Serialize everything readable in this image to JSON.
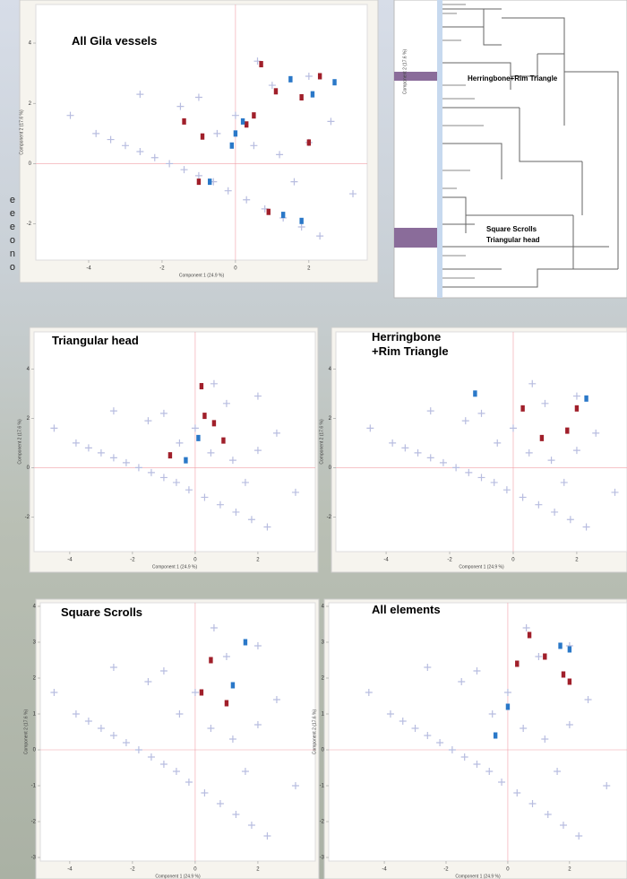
{
  "chart_data": [
    {
      "type": "scatter",
      "title": "All Gila vessels",
      "x_label": "Component 1 (24.9 %)",
      "y_label": "Component 2 (17.6 %)",
      "xlim": [
        -5.44,
        3.59
      ],
      "ylim": [
        -3.2,
        5.28
      ],
      "xticks": [
        -4,
        -2,
        0,
        2
      ],
      "yticks": [
        -2,
        0,
        2,
        4
      ],
      "series": [
        {
          "color": "#b8bde0",
          "marker": "plus",
          "x": [
            -4.5,
            -3.8,
            -3.4,
            -3.0,
            -2.6,
            -2.2,
            -1.8,
            -1.4,
            -1.0,
            -0.6,
            -0.2,
            0.3,
            0.8,
            1.3,
            1.8,
            2.3,
            -2.6,
            -1.5,
            -0.5,
            0.5,
            1.2,
            2.0,
            2.6,
            -1.0,
            0.0,
            1.0,
            2.0,
            0.6,
            1.6,
            3.2
          ],
          "values": [
            1.6,
            1.0,
            0.8,
            0.6,
            0.4,
            0.2,
            0.0,
            -0.2,
            -0.4,
            -0.6,
            -0.9,
            -1.2,
            -1.5,
            -1.8,
            -2.1,
            -2.4,
            2.3,
            1.9,
            1.0,
            0.6,
            0.3,
            0.7,
            1.4,
            2.2,
            1.6,
            2.6,
            2.9,
            3.4,
            -0.6,
            -1.0
          ]
        },
        {
          "color": "#a01f2a",
          "marker": "rect",
          "x": [
            0.7,
            1.1,
            -0.9,
            0.3,
            1.8,
            -1.4,
            0.5,
            2.3,
            -1.0,
            2.0,
            0.9
          ],
          "values": [
            3.3,
            2.4,
            0.9,
            1.3,
            2.2,
            1.4,
            1.6,
            2.9,
            -0.6,
            0.7,
            -1.6
          ]
        },
        {
          "color": "#2a78c8",
          "marker": "rect",
          "x": [
            1.5,
            2.1,
            0.0,
            0.2,
            -0.7,
            1.3,
            1.8,
            -0.1,
            2.7
          ],
          "values": [
            2.8,
            2.3,
            1.0,
            1.4,
            -0.6,
            -1.7,
            -1.9,
            0.6,
            2.7
          ]
        }
      ]
    },
    {
      "type": "scatter",
      "title": "Triangular head",
      "x_label": "Component 1 (24.9 %)",
      "y_label": "Component 2 (17.6 %)",
      "xlim": [
        -5.14,
        3.83
      ],
      "ylim": [
        -3.4,
        5.5
      ],
      "xticks": [
        -4,
        -2,
        0,
        2
      ],
      "yticks": [
        -2,
        0,
        2,
        4
      ],
      "series": [
        {
          "color": "#b8bde0",
          "marker": "plus",
          "x": [
            -4.5,
            -3.8,
            -3.4,
            -3.0,
            -2.6,
            -2.2,
            -1.8,
            -1.4,
            -1.0,
            -0.6,
            -0.2,
            0.3,
            0.8,
            1.3,
            1.8,
            2.3,
            -2.6,
            -1.5,
            -0.5,
            0.5,
            1.2,
            2.0,
            2.6,
            -1.0,
            0.0,
            1.0,
            2.0,
            0.6,
            1.6,
            3.2
          ],
          "values": [
            1.6,
            1.0,
            0.8,
            0.6,
            0.4,
            0.2,
            0.0,
            -0.2,
            -0.4,
            -0.6,
            -0.9,
            -1.2,
            -1.5,
            -1.8,
            -2.1,
            -2.4,
            2.3,
            1.9,
            1.0,
            0.6,
            0.3,
            0.7,
            1.4,
            2.2,
            1.6,
            2.6,
            2.9,
            3.4,
            -0.6,
            -1.0
          ]
        },
        {
          "color": "#a01f2a",
          "marker": "rect",
          "x": [
            0.2,
            -0.8,
            0.6,
            0.9,
            0.3
          ],
          "values": [
            3.3,
            0.5,
            1.8,
            1.1,
            2.1
          ]
        },
        {
          "color": "#2a78c8",
          "marker": "rect",
          "x": [
            0.1,
            -0.3
          ],
          "values": [
            1.2,
            0.3
          ]
        }
      ]
    },
    {
      "type": "scatter",
      "title": "Herringbone\n+Rim Triangle",
      "x_label": "Component 1 (24.9 %)",
      "y_label": "Component 2 (17.6 %)",
      "xlim": [
        -5.58,
        3.58
      ],
      "ylim": [
        -3.4,
        5.5
      ],
      "xticks": [
        -4,
        -2,
        0,
        2
      ],
      "yticks": [
        -2,
        0,
        2,
        4
      ],
      "series": [
        {
          "color": "#b8bde0",
          "marker": "plus",
          "x": [
            -4.5,
            -3.8,
            -3.4,
            -3.0,
            -2.6,
            -2.2,
            -1.8,
            -1.4,
            -1.0,
            -0.6,
            -0.2,
            0.3,
            0.8,
            1.3,
            1.8,
            2.3,
            -2.6,
            -1.5,
            -0.5,
            0.5,
            1.2,
            2.0,
            2.6,
            -1.0,
            0.0,
            1.0,
            2.0,
            0.6,
            1.6,
            3.2
          ],
          "values": [
            1.6,
            1.0,
            0.8,
            0.6,
            0.4,
            0.2,
            0.0,
            -0.2,
            -0.4,
            -0.6,
            -0.9,
            -1.2,
            -1.5,
            -1.8,
            -2.1,
            -2.4,
            2.3,
            1.9,
            1.0,
            0.6,
            0.3,
            0.7,
            1.4,
            2.2,
            1.6,
            2.6,
            2.9,
            3.4,
            -0.6,
            -1.0
          ]
        },
        {
          "color": "#a01f2a",
          "marker": "rect",
          "x": [
            0.3,
            0.9,
            1.7,
            2.0
          ],
          "values": [
            2.4,
            1.2,
            1.5,
            2.4
          ]
        },
        {
          "color": "#2a78c8",
          "marker": "rect",
          "x": [
            -1.2,
            2.3
          ],
          "values": [
            3.0,
            2.8
          ]
        }
      ]
    },
    {
      "type": "scatter",
      "title": "Square Scrolls",
      "x_label": "Component 1 (24.9 %)",
      "y_label": "Component 2 (17.6 %)",
      "xlim": [
        -4.94,
        3.83
      ],
      "ylim": [
        -3.1,
        4.1
      ],
      "xticks": [
        -4,
        -2,
        0,
        2
      ],
      "yticks": [
        -3,
        -2,
        -1,
        0,
        1,
        2,
        3,
        4
      ],
      "series": [
        {
          "color": "#b8bde0",
          "marker": "plus",
          "x": [
            -4.5,
            -3.8,
            -3.4,
            -3.0,
            -2.6,
            -2.2,
            -1.8,
            -1.4,
            -1.0,
            -0.6,
            -0.2,
            0.3,
            0.8,
            1.3,
            1.8,
            2.3,
            -2.6,
            -1.5,
            -0.5,
            0.5,
            1.2,
            2.0,
            2.6,
            -1.0,
            0.0,
            1.0,
            2.0,
            0.6,
            1.6,
            3.2
          ],
          "values": [
            1.6,
            1.0,
            0.8,
            0.6,
            0.4,
            0.2,
            0.0,
            -0.2,
            -0.4,
            -0.6,
            -0.9,
            -1.2,
            -1.5,
            -1.8,
            -2.1,
            -2.4,
            2.3,
            1.9,
            1.0,
            0.6,
            0.3,
            0.7,
            1.4,
            2.2,
            1.6,
            2.6,
            2.9,
            3.4,
            -0.6,
            -1.0
          ]
        },
        {
          "color": "#a01f2a",
          "marker": "rect",
          "x": [
            0.5,
            1.0,
            0.2
          ],
          "values": [
            2.5,
            1.3,
            1.6
          ]
        },
        {
          "color": "#2a78c8",
          "marker": "rect",
          "x": [
            1.2,
            1.6
          ],
          "values": [
            1.8,
            3.0
          ]
        }
      ]
    },
    {
      "type": "scatter",
      "title": "All elements",
      "x_label": "Component 1 (24.9 %)",
      "y_label": "Component 2 (17.6 %)",
      "xlim": [
        -5.8,
        3.86
      ],
      "ylim": [
        -3.1,
        4.1
      ],
      "xticks": [
        -4,
        -2,
        0,
        2
      ],
      "yticks": [
        -3,
        -2,
        -1,
        0,
        1,
        2,
        3,
        4
      ],
      "series": [
        {
          "color": "#b8bde0",
          "marker": "plus",
          "x": [
            -4.5,
            -3.8,
            -3.4,
            -3.0,
            -2.6,
            -2.2,
            -1.8,
            -1.4,
            -1.0,
            -0.6,
            -0.2,
            0.3,
            0.8,
            1.3,
            1.8,
            2.3,
            -2.6,
            -1.5,
            -0.5,
            0.5,
            1.2,
            2.0,
            2.6,
            -1.0,
            0.0,
            1.0,
            2.0,
            0.6,
            1.6,
            3.2
          ],
          "values": [
            1.6,
            1.0,
            0.8,
            0.6,
            0.4,
            0.2,
            0.0,
            -0.2,
            -0.4,
            -0.6,
            -0.9,
            -1.2,
            -1.5,
            -1.8,
            -2.1,
            -2.4,
            2.3,
            1.9,
            1.0,
            0.6,
            0.3,
            0.7,
            1.4,
            2.2,
            1.6,
            2.6,
            2.9,
            3.4,
            -0.6,
            -1.0
          ]
        },
        {
          "color": "#a01f2a",
          "marker": "rect",
          "x": [
            0.7,
            1.2,
            0.3,
            1.8,
            2.0
          ],
          "values": [
            3.2,
            2.6,
            2.4,
            2.1,
            1.9
          ]
        },
        {
          "color": "#2a78c8",
          "marker": "rect",
          "x": [
            0.0,
            -0.4,
            1.7,
            2.0
          ],
          "values": [
            1.2,
            0.4,
            2.9,
            2.8
          ]
        }
      ]
    }
  ],
  "dendrogram": {
    "axis_label": "Component 2 (17.6 %)",
    "labels": [
      "Herringbone+Rim Triangle",
      "Square Scrolls",
      "Triangular head"
    ]
  },
  "side_text": [
    "e",
    "e",
    "e",
    "o",
    "n",
    "o"
  ]
}
